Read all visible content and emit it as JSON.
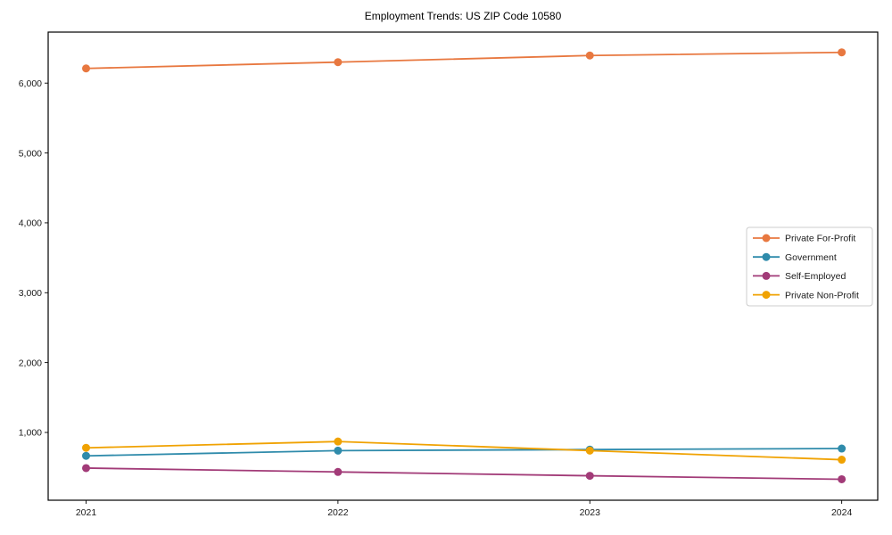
{
  "figure": {
    "background": "#ffffff",
    "spine_color": "#000000",
    "tick_color": "#000000",
    "legend_border_color": "#cccccc",
    "legend_background": "#ffffff"
  },
  "chart_data": {
    "type": "line",
    "title": "Employment Trends: US ZIP Code 10580",
    "x": [
      "2021",
      "2022",
      "2023",
      "2024"
    ],
    "series": [
      {
        "name": "Private For-Profit",
        "color": "#E87840",
        "values": [
          6210,
          6300,
          6395,
          6440
        ]
      },
      {
        "name": "Government",
        "color": "#2F8BAB",
        "values": [
          665,
          740,
          755,
          770
        ]
      },
      {
        "name": "Self-Employed",
        "color": "#A23B78",
        "values": [
          490,
          435,
          380,
          330
        ]
      },
      {
        "name": "Private Non-Profit",
        "color": "#F0A202",
        "values": [
          780,
          870,
          740,
          610
        ]
      }
    ],
    "xlabel": "",
    "ylabel": "",
    "ylim": [
      30,
      6730
    ],
    "yticks": [
      1000,
      2000,
      3000,
      4000,
      5000,
      6000
    ],
    "ytick_labels": [
      "1,000",
      "2,000",
      "3,000",
      "4,000",
      "5,000",
      "6,000"
    ],
    "grid": false,
    "legend": {
      "position": "center-right",
      "marker": "circle-on-line"
    }
  }
}
